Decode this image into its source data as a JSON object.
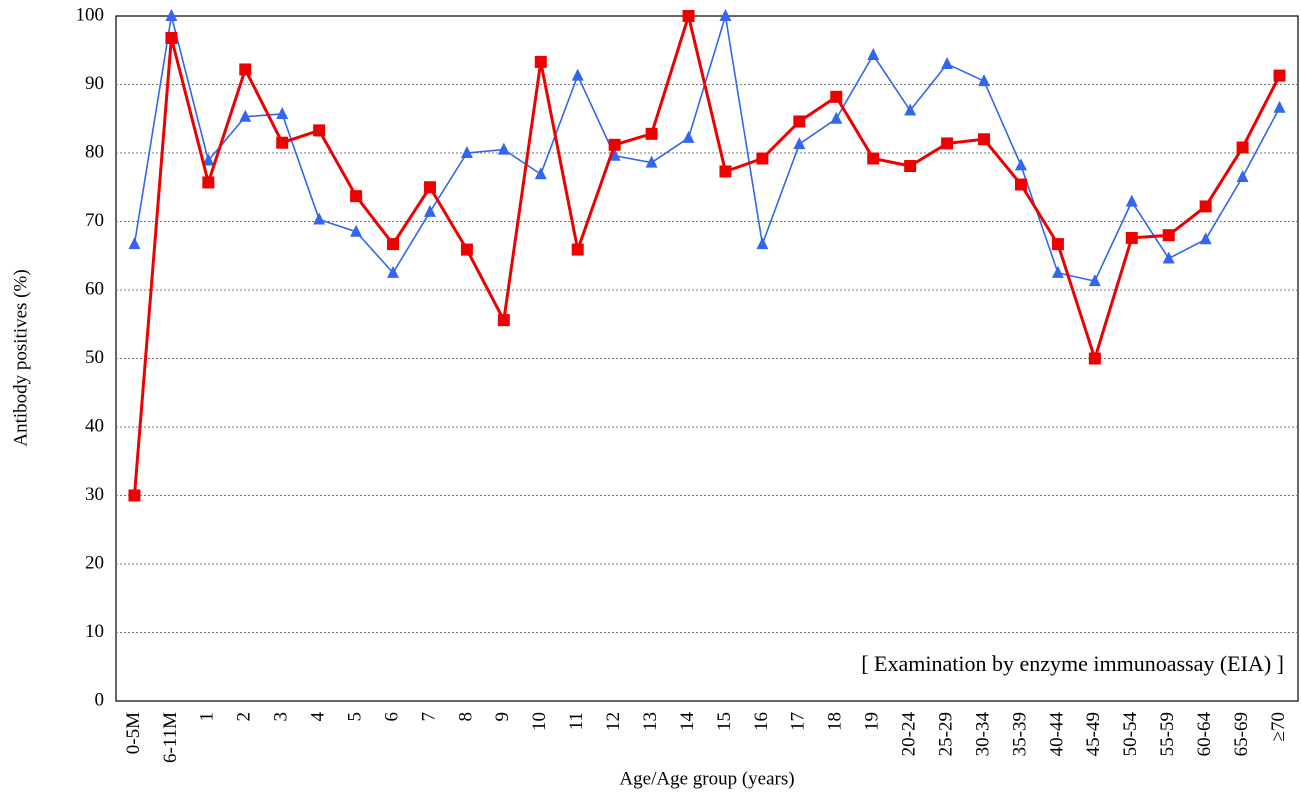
{
  "chart_data": {
    "type": "line",
    "y_label": "Antibody positives  (%)",
    "x_label": "Age/Age group (years)",
    "annotation": "[ Examination by enzyme immunoassay (EIA) ]",
    "categories": [
      "0-5M",
      "6-11M",
      "1",
      "2",
      "3",
      "4",
      "5",
      "6",
      "7",
      "8",
      "9",
      "10",
      "11",
      "12",
      "13",
      "14",
      "15",
      "16",
      "17",
      "18",
      "19",
      "20-24",
      "25-29",
      "30-34",
      "35-39",
      "40-44",
      "45-49",
      "50-54",
      "55-59",
      "60-64",
      "65-69",
      "≥70"
    ],
    "series": [
      {
        "color": "#3366ee",
        "marker": "triangle",
        "values": [
          66.7,
          100,
          78.9,
          85.3,
          85.7,
          70.3,
          68.5,
          62.5,
          71.4,
          80.0,
          80.5,
          76.9,
          91.3,
          79.6,
          78.6,
          82.2,
          100,
          66.7,
          81.3,
          85.0,
          94.3,
          86.2,
          93.0,
          90.5,
          78.2,
          62.5,
          61.3,
          72.9,
          64.6,
          67.4,
          76.5,
          86.6
        ]
      },
      {
        "color": "#ee0000",
        "marker": "square",
        "values": [
          30,
          96.8,
          75.7,
          92.2,
          81.5,
          83.3,
          73.7,
          66.7,
          75,
          65.9,
          55.6,
          93.3,
          65.9,
          81.2,
          82.8,
          100,
          77.3,
          79.2,
          84.6,
          88.2,
          79.2,
          78.1,
          81.4,
          82.0,
          75.4,
          66.7,
          50,
          67.6,
          68.0,
          72.2,
          80.8,
          91.3
        ]
      }
    ],
    "ylim": [
      0,
      100
    ],
    "yticks": [
      0,
      10,
      20,
      30,
      40,
      50,
      60,
      70,
      80,
      90,
      100
    ],
    "grid": true
  }
}
